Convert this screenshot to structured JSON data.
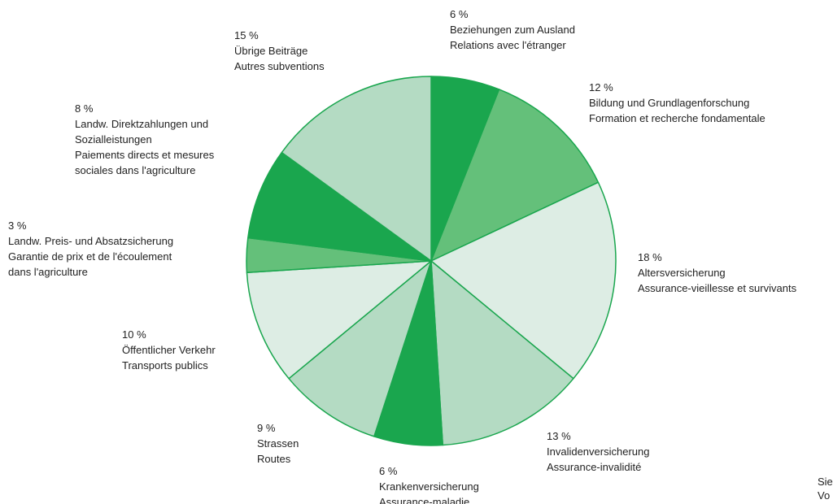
{
  "chart_data": {
    "type": "pie",
    "categories": [
      [
        "Beziehungen zum Ausland",
        "Relations avec l'étranger"
      ],
      [
        "Bildung und Grundlagenforschung",
        "Formation et recherche fondamentale"
      ],
      [
        "Altersversicherung",
        "Assurance-vieillesse et survivants"
      ],
      [
        "Invalidenversicherung",
        "Assurance-invalidité"
      ],
      [
        "Krankenversicherung",
        "Assurance-maladie"
      ],
      [
        "Strassen",
        "Routes"
      ],
      [
        "Öffentlicher Verkehr",
        "Transports publics"
      ],
      [
        "Landw. Preis- und Absatzsicherung",
        "Garantie de prix et de l'écoulement",
        "dans l'agriculture"
      ],
      [
        "Landw. Direktzahlungen und",
        "Sozialleistungen",
        "Paiements directs et mesures",
        "sociales dans l'agriculture"
      ],
      [
        "Übrige Beiträge",
        "Autres subventions"
      ]
    ],
    "values": [
      6,
      12,
      18,
      13,
      6,
      9,
      10,
      3,
      8,
      15
    ],
    "value_labels": [
      "6 %",
      "12 %",
      "18 %",
      "13 %",
      "6 %",
      "9 %",
      "10 %",
      "3 %",
      "8 %",
      "15 %"
    ],
    "colors": [
      "#1aa64e",
      "#64c07a",
      "#ddede4",
      "#b4dbc3",
      "#1aa64e",
      "#b4dbc3",
      "#ddede4",
      "#64c07a",
      "#1aa64e",
      "#b4dbc3"
    ],
    "edge_color": "#1aa64e",
    "footnote": [
      "Sie",
      "Vo"
    ]
  }
}
